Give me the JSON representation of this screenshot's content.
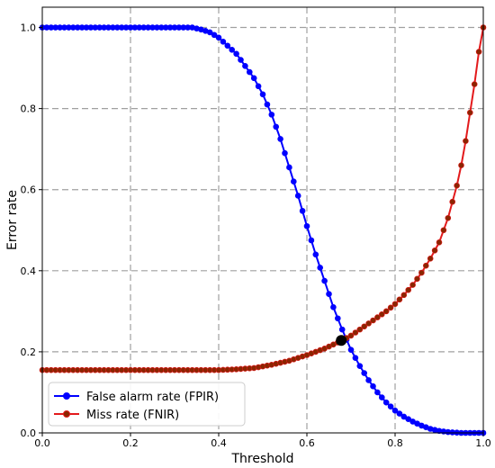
{
  "chart_data": {
    "type": "line",
    "title": "",
    "xlabel": "Threshold",
    "ylabel": "Error rate",
    "xlim": [
      0.0,
      1.0
    ],
    "ylim": [
      0.0,
      1.05
    ],
    "xticks": [
      "0.0",
      "0.2",
      "0.4",
      "0.6",
      "0.8",
      "1.0"
    ],
    "yticks": [
      "0.0",
      "0.2",
      "0.4",
      "0.6",
      "0.8",
      "1.0"
    ],
    "grid": true,
    "legend_position": "lower-left",
    "series": [
      {
        "name": "False alarm rate (FPIR)",
        "color": "#0000ff",
        "points": [
          [
            0.0,
            1.0
          ],
          [
            0.05,
            1.0
          ],
          [
            0.1,
            1.0
          ],
          [
            0.15,
            1.0
          ],
          [
            0.2,
            1.0
          ],
          [
            0.25,
            1.0
          ],
          [
            0.3,
            1.0
          ],
          [
            0.34,
            1.0
          ],
          [
            0.36,
            0.995
          ],
          [
            0.38,
            0.988
          ],
          [
            0.4,
            0.975
          ],
          [
            0.42,
            0.955
          ],
          [
            0.44,
            0.935
          ],
          [
            0.46,
            0.905
          ],
          [
            0.48,
            0.875
          ],
          [
            0.5,
            0.835
          ],
          [
            0.52,
            0.785
          ],
          [
            0.54,
            0.725
          ],
          [
            0.56,
            0.655
          ],
          [
            0.58,
            0.585
          ],
          [
            0.6,
            0.51
          ],
          [
            0.62,
            0.44
          ],
          [
            0.64,
            0.375
          ],
          [
            0.66,
            0.31
          ],
          [
            0.68,
            0.255
          ],
          [
            0.7,
            0.205
          ],
          [
            0.72,
            0.165
          ],
          [
            0.74,
            0.13
          ],
          [
            0.76,
            0.1
          ],
          [
            0.78,
            0.075
          ],
          [
            0.8,
            0.055
          ],
          [
            0.82,
            0.04
          ],
          [
            0.84,
            0.028
          ],
          [
            0.86,
            0.018
          ],
          [
            0.88,
            0.01
          ],
          [
            0.9,
            0.005
          ],
          [
            0.92,
            0.002
          ],
          [
            0.95,
            0.0
          ],
          [
            1.0,
            0.0
          ]
        ]
      },
      {
        "name": "Miss rate (FNIR)",
        "color": "#e31a1c",
        "marker_color": "#8b2500",
        "points": [
          [
            0.0,
            0.155
          ],
          [
            0.1,
            0.155
          ],
          [
            0.2,
            0.155
          ],
          [
            0.3,
            0.155
          ],
          [
            0.4,
            0.155
          ],
          [
            0.44,
            0.157
          ],
          [
            0.48,
            0.16
          ],
          [
            0.52,
            0.168
          ],
          [
            0.56,
            0.178
          ],
          [
            0.6,
            0.192
          ],
          [
            0.64,
            0.208
          ],
          [
            0.68,
            0.228
          ],
          [
            0.7,
            0.24
          ],
          [
            0.72,
            0.255
          ],
          [
            0.74,
            0.27
          ],
          [
            0.76,
            0.285
          ],
          [
            0.78,
            0.3
          ],
          [
            0.8,
            0.318
          ],
          [
            0.82,
            0.34
          ],
          [
            0.84,
            0.365
          ],
          [
            0.86,
            0.395
          ],
          [
            0.88,
            0.43
          ],
          [
            0.9,
            0.47
          ],
          [
            0.92,
            0.53
          ],
          [
            0.94,
            0.61
          ],
          [
            0.95,
            0.66
          ],
          [
            0.96,
            0.72
          ],
          [
            0.97,
            0.79
          ],
          [
            0.98,
            0.86
          ],
          [
            0.99,
            0.94
          ],
          [
            1.0,
            1.0
          ]
        ]
      }
    ],
    "annotations": [
      {
        "type": "intersection-point",
        "x": 0.678,
        "y": 0.228,
        "color": "#000000"
      }
    ]
  }
}
